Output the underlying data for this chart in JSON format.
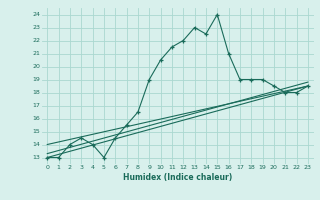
{
  "xlabel": "Humidex (Indice chaleur)",
  "x": [
    0,
    1,
    2,
    3,
    4,
    5,
    6,
    7,
    8,
    9,
    10,
    11,
    12,
    13,
    14,
    15,
    16,
    17,
    18,
    19,
    20,
    21,
    22,
    23
  ],
  "y": [
    13,
    13,
    14,
    14.5,
    14,
    13,
    14.5,
    15.5,
    16.5,
    19,
    20.5,
    21.5,
    22,
    23,
    22.5,
    24,
    21,
    19,
    19,
    19,
    18.5,
    18,
    18,
    18.5
  ],
  "ylim": [
    12.5,
    24.5
  ],
  "xlim": [
    -0.5,
    23.5
  ],
  "yticks": [
    13,
    14,
    15,
    16,
    17,
    18,
    19,
    20,
    21,
    22,
    23,
    24
  ],
  "xticks": [
    0,
    1,
    2,
    3,
    4,
    5,
    6,
    7,
    8,
    9,
    10,
    11,
    12,
    13,
    14,
    15,
    16,
    17,
    18,
    19,
    20,
    21,
    22,
    23
  ],
  "line_color": "#1a6b5a",
  "bg_color": "#d8f0ec",
  "grid_color": "#aad8d0",
  "trend_lines": [
    {
      "x0": 0,
      "y0": 13.0,
      "x1": 23,
      "y1": 18.5
    },
    {
      "x0": 0,
      "y0": 13.3,
      "x1": 23,
      "y1": 18.8
    },
    {
      "x0": 0,
      "y0": 14.0,
      "x1": 23,
      "y1": 18.5
    }
  ]
}
